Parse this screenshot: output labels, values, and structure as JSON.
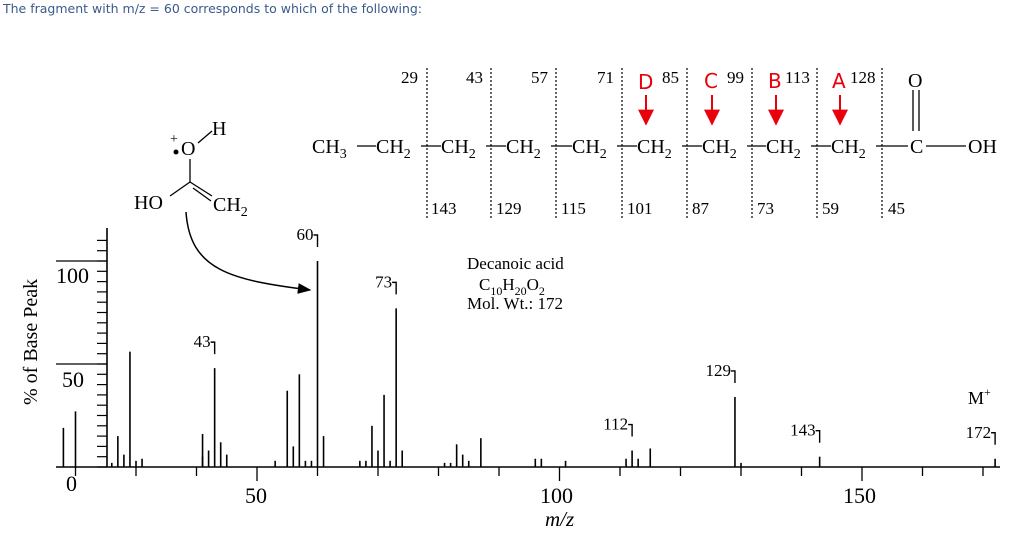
{
  "question": "The fragment with m/z = 60 corresponds to which of the following:",
  "colors": {
    "text": "#000000",
    "marker": "#e8000b",
    "question": "#3a5a8c"
  },
  "chart_data": {
    "type": "bar",
    "ylabel": "% of Base Peak",
    "xlabel": "m/z",
    "xlim": [
      16,
      174
    ],
    "ylim": [
      0,
      100
    ],
    "x_ticks": [
      "50",
      "100",
      "150"
    ],
    "y_ticks": [
      "0",
      "50",
      "100"
    ],
    "peaks": [
      [
        18,
        19
      ],
      [
        20,
        27
      ],
      [
        26,
        2
      ],
      [
        27,
        15
      ],
      [
        28,
        6
      ],
      [
        29,
        56
      ],
      [
        30,
        3
      ],
      [
        31,
        4
      ],
      [
        41,
        5
      ],
      [
        41,
        16
      ],
      [
        42,
        8
      ],
      [
        43,
        48
      ],
      [
        44,
        12
      ],
      [
        45,
        6
      ],
      [
        53,
        3
      ],
      [
        55,
        37
      ],
      [
        56,
        10
      ],
      [
        57,
        45
      ],
      [
        58,
        3
      ],
      [
        59,
        3
      ],
      [
        60,
        100
      ],
      [
        61,
        15
      ],
      [
        67,
        3
      ],
      [
        68,
        3
      ],
      [
        69,
        20
      ],
      [
        70,
        8
      ],
      [
        71,
        35
      ],
      [
        72,
        3
      ],
      [
        73,
        77
      ],
      [
        74,
        8
      ],
      [
        81,
        2
      ],
      [
        82,
        2
      ],
      [
        83,
        11
      ],
      [
        84,
        6
      ],
      [
        85,
        3
      ],
      [
        87,
        14
      ],
      [
        96,
        4
      ],
      [
        97,
        4
      ],
      [
        101,
        3
      ],
      [
        111,
        4
      ],
      [
        112,
        8
      ],
      [
        113,
        4
      ],
      [
        115,
        9
      ],
      [
        129,
        34
      ],
      [
        130,
        2
      ],
      [
        143,
        5
      ],
      [
        172,
        4
      ]
    ],
    "peak_labels": [
      {
        "x": 43,
        "y": 48,
        "label": "43"
      },
      {
        "x": 60,
        "y": 100,
        "label": "60"
      },
      {
        "x": 73,
        "y": 77,
        "label": "73"
      },
      {
        "x": 112,
        "y": 8,
        "label": "112"
      },
      {
        "x": 129,
        "y": 34,
        "label": "129"
      },
      {
        "x": 143,
        "y": 5,
        "label": "143"
      },
      {
        "x": 172,
        "y": 4,
        "label": "172"
      }
    ],
    "molecular_ion": "M",
    "compound": {
      "name": "Decanoic acid",
      "formula": "C10H20O2",
      "mol_wt": "Mol. Wt.: 172"
    }
  },
  "structure": {
    "chain_groups": [
      "CH3",
      "CH2",
      "CH2",
      "CH2",
      "CH2",
      "CH2",
      "CH2",
      "CH2",
      "CH2",
      "C",
      "OH"
    ],
    "carbonyl_o": "O",
    "top_masses": [
      "29",
      "43",
      "57",
      "71",
      "85",
      "99",
      "113",
      "128"
    ],
    "bottom_masses": [
      "143",
      "129",
      "115",
      "101",
      "87",
      "73",
      "59",
      "45"
    ],
    "markers": [
      "D",
      "C",
      "B",
      "A"
    ]
  },
  "ion": {
    "h": "H",
    "o": "O",
    "ho": "HO",
    "ch2": "CH2",
    "charge": "+"
  }
}
